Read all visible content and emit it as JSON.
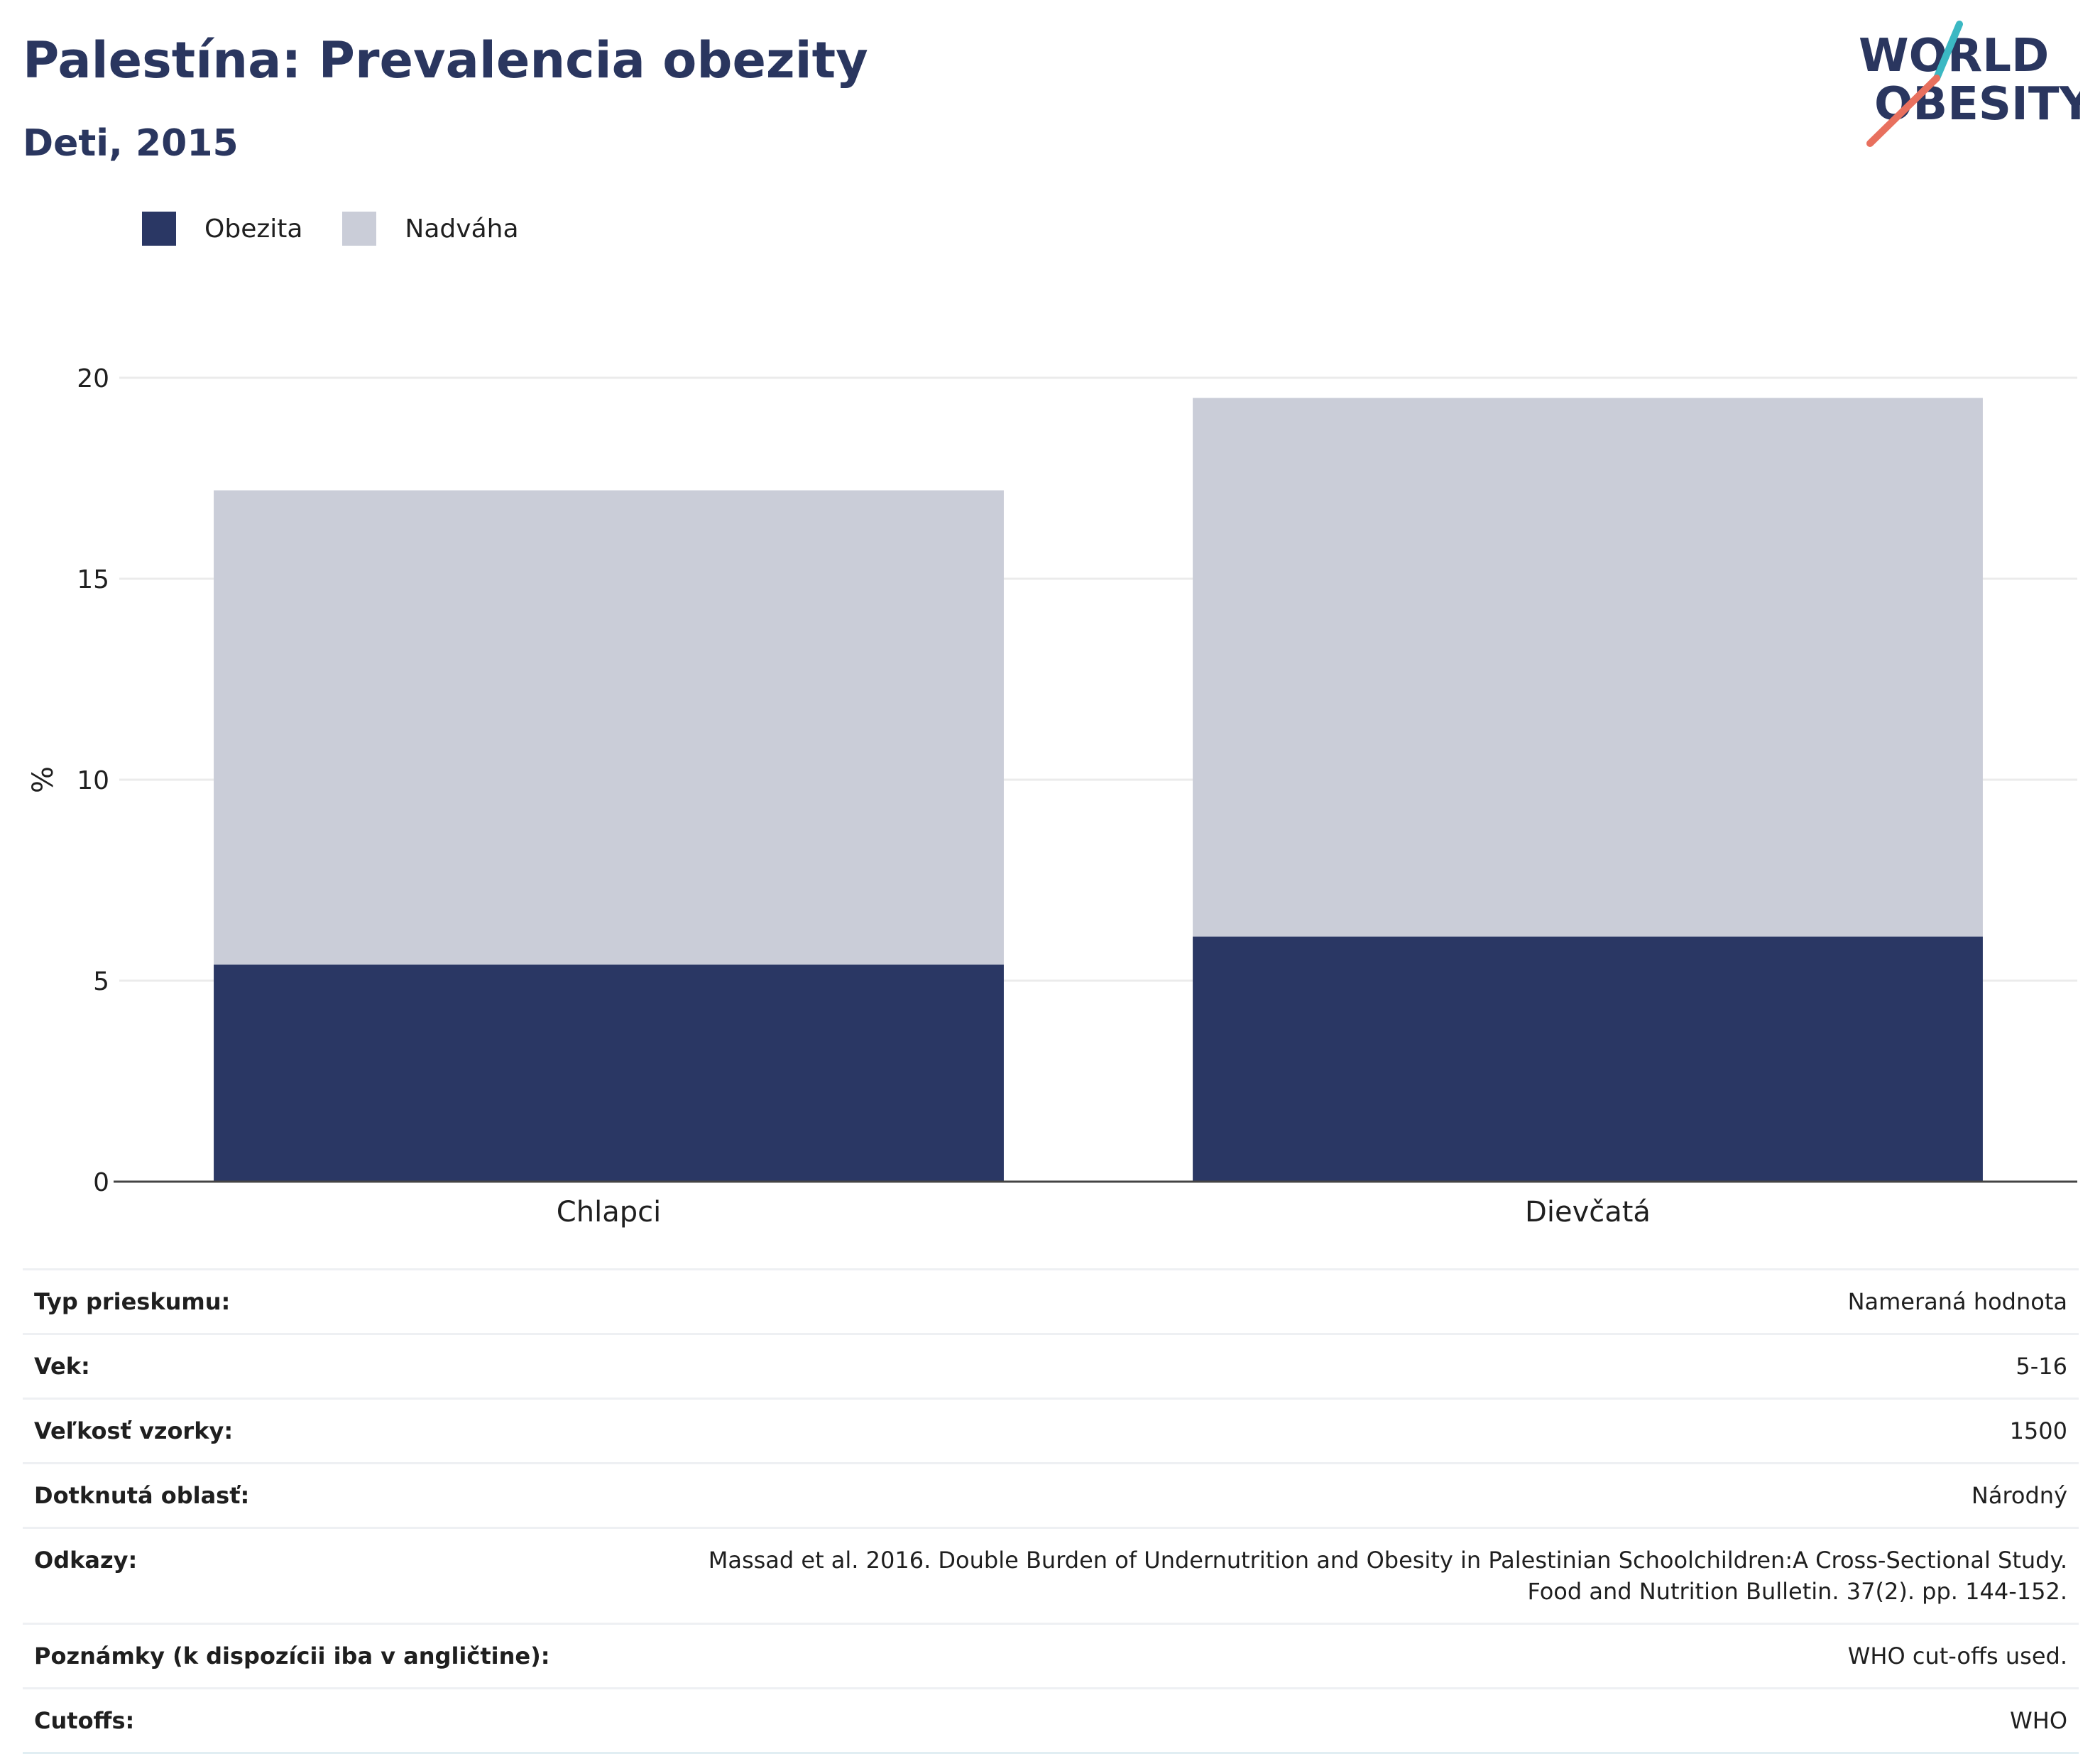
{
  "header": {
    "title": "Palestína: Prevalencia obezity",
    "subtitle": "Deti, 2015"
  },
  "logo": {
    "line1": "WORLD",
    "line2": "OBESITY",
    "colors": {
      "text": "#2a365f",
      "slash_top": "#3bb8c3",
      "slash_bottom": "#e8705e"
    }
  },
  "legend": {
    "items": [
      {
        "label": "Obezita",
        "color": "#2a3764"
      },
      {
        "label": "Nadváha",
        "color": "#cacdd8"
      }
    ]
  },
  "chart_data": {
    "type": "bar",
    "stacked": true,
    "categories": [
      "Chlapci",
      "Dievčatá"
    ],
    "series": [
      {
        "name": "Obezita",
        "values": [
          5.4,
          6.1
        ],
        "color": "#2a3764"
      },
      {
        "name": "Nadváha",
        "values": [
          11.8,
          13.4
        ],
        "color": "#cacdd8"
      }
    ],
    "ylabel": "%",
    "ylim": [
      0,
      20
    ],
    "yticks": [
      0,
      5,
      10,
      15,
      20
    ],
    "grid": true,
    "legend_position": "top-left"
  },
  "info": {
    "rows": [
      {
        "label": "Typ prieskumu:",
        "value": "Nameraná hodnota"
      },
      {
        "label": "Vek:",
        "value": "5-16"
      },
      {
        "label": "Veľkosť vzorky:",
        "value": "1500"
      },
      {
        "label": "Dotknutá oblasť:",
        "value": "Národný"
      },
      {
        "label": "Odkazy:",
        "value": "Massad et al. 2016. Double Burden of Undernutrition and Obesity in Palestinian Schoolchildren:A Cross-Sectional Study. Food and Nutrition Bulletin. 37(2). pp. 144-152."
      },
      {
        "label": "Poznámky (k dispozícii iba v angličtine):",
        "value": "WHO cut-offs used."
      },
      {
        "label": "Cutoffs:",
        "value": "WHO"
      }
    ]
  }
}
